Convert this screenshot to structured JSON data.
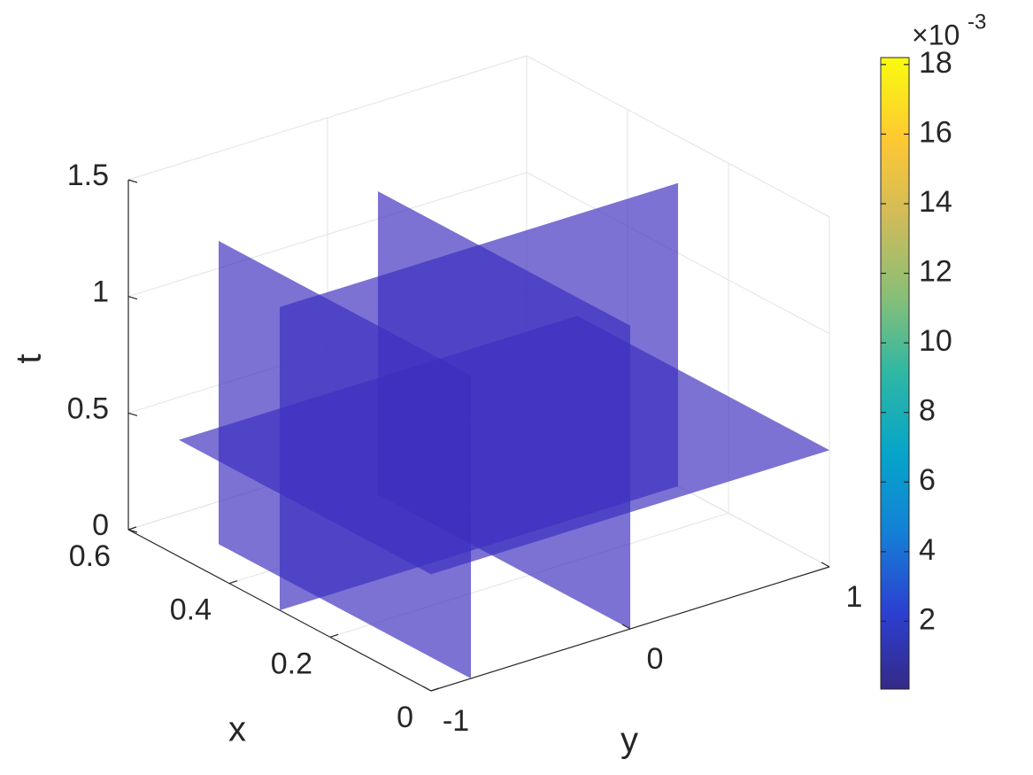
{
  "chart_data": {
    "type": "slice3d",
    "xlabel": "x",
    "ylabel": "y",
    "zlabel": "t",
    "xlim": [
      0,
      0.6
    ],
    "xticks": [
      0,
      0.2,
      0.4,
      0.6
    ],
    "ylim": [
      -1,
      1
    ],
    "yticks": [
      -1,
      0,
      1
    ],
    "zlim": [
      0,
      1.5
    ],
    "zticks": [
      0,
      0.5,
      1,
      1.5
    ],
    "grid": true,
    "domain": {
      "x": [
        0,
        0.5
      ],
      "y": [
        -1,
        1
      ],
      "t": [
        0,
        1.3
      ]
    },
    "slices": {
      "x": [
        0.3
      ],
      "y": [
        -0.8,
        0
      ],
      "t": [
        0.5
      ]
    },
    "slice_color": "#3d2fc0",
    "slice_opacity": 0.68,
    "colorbar": {
      "clim": [
        5e-05,
        0.0182
      ],
      "exponent_base": "×10",
      "exponent": "-3",
      "ticks": [
        {
          "value": 0.002,
          "label": "2"
        },
        {
          "value": 0.004,
          "label": "4"
        },
        {
          "value": 0.006,
          "label": "6"
        },
        {
          "value": 0.008,
          "label": "8"
        },
        {
          "value": 0.01,
          "label": "10"
        },
        {
          "value": 0.012,
          "label": "12"
        },
        {
          "value": 0.014,
          "label": "14"
        },
        {
          "value": 0.016,
          "label": "16"
        },
        {
          "value": 0.018,
          "label": "18"
        }
      ]
    }
  }
}
